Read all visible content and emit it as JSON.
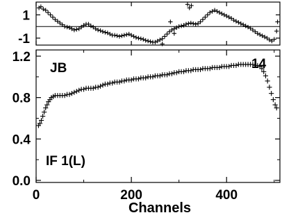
{
  "chart_data": [
    {
      "type": "scatter",
      "panel": "top",
      "ylim": [
        -1.6,
        2.1
      ],
      "xlim": [
        0,
        512
      ],
      "yticks": [
        "1",
        "-1"
      ],
      "ytick_values": [
        1,
        -1
      ],
      "reference_line_y": 0,
      "series": [
        {
          "marker": "+",
          "points": [
            [
              6,
              1.6
            ],
            [
              10,
              1.7
            ],
            [
              15,
              1.5
            ],
            [
              20,
              1.4
            ],
            [
              25,
              1.2
            ],
            [
              30,
              1.0
            ],
            [
              35,
              0.8
            ],
            [
              40,
              0.6
            ],
            [
              45,
              0.45
            ],
            [
              50,
              0.3
            ],
            [
              55,
              0.15
            ],
            [
              60,
              0.0
            ],
            [
              65,
              -0.05
            ],
            [
              70,
              -0.1
            ],
            [
              75,
              -0.2
            ],
            [
              80,
              -0.3
            ],
            [
              85,
              -0.25
            ],
            [
              90,
              -0.2
            ],
            [
              95,
              -0.05
            ],
            [
              100,
              0.1
            ],
            [
              105,
              0.2
            ],
            [
              110,
              0.2
            ],
            [
              115,
              0.05
            ],
            [
              120,
              -0.05
            ],
            [
              125,
              -0.2
            ],
            [
              130,
              -0.3
            ],
            [
              135,
              -0.35
            ],
            [
              140,
              -0.45
            ],
            [
              145,
              -0.5
            ],
            [
              150,
              -0.55
            ],
            [
              155,
              -0.65
            ],
            [
              160,
              -0.75
            ],
            [
              165,
              -0.75
            ],
            [
              170,
              -0.8
            ],
            [
              175,
              -0.85
            ],
            [
              180,
              -0.8
            ],
            [
              185,
              -0.75
            ],
            [
              190,
              -0.7
            ],
            [
              195,
              -0.65
            ],
            [
              200,
              -0.75
            ],
            [
              205,
              -0.85
            ],
            [
              210,
              -0.95
            ],
            [
              215,
              -1.0
            ],
            [
              220,
              -1.05
            ],
            [
              225,
              -1.1
            ],
            [
              230,
              -1.2
            ],
            [
              235,
              -1.25
            ],
            [
              240,
              -1.3
            ],
            [
              245,
              -1.35
            ],
            [
              250,
              -1.35
            ],
            [
              255,
              -1.25
            ],
            [
              260,
              -1.15
            ],
            [
              265,
              -1.05
            ],
            [
              270,
              -0.85
            ],
            [
              275,
              -0.65
            ],
            [
              280,
              -0.45
            ],
            [
              285,
              -0.3
            ],
            [
              290,
              -0.2
            ],
            [
              295,
              -0.1
            ],
            [
              300,
              0.0
            ],
            [
              305,
              0.05
            ],
            [
              310,
              0.1
            ],
            [
              315,
              0.2
            ],
            [
              320,
              0.25
            ],
            [
              325,
              0.3
            ],
            [
              330,
              0.25
            ],
            [
              335,
              0.2
            ],
            [
              340,
              0.25
            ],
            [
              345,
              0.4
            ],
            [
              350,
              0.6
            ],
            [
              355,
              0.8
            ],
            [
              360,
              1.0
            ],
            [
              365,
              1.2
            ],
            [
              370,
              1.3
            ],
            [
              375,
              1.4
            ],
            [
              380,
              1.3
            ],
            [
              385,
              1.2
            ],
            [
              390,
              1.1
            ],
            [
              395,
              1.0
            ],
            [
              400,
              0.9
            ],
            [
              405,
              0.8
            ],
            [
              410,
              0.7
            ],
            [
              415,
              0.55
            ],
            [
              420,
              0.45
            ],
            [
              425,
              0.35
            ],
            [
              430,
              0.25
            ],
            [
              435,
              0.15
            ],
            [
              440,
              0.05
            ],
            [
              445,
              -0.05
            ],
            [
              450,
              -0.15
            ],
            [
              455,
              -0.3
            ],
            [
              460,
              -0.45
            ],
            [
              465,
              -0.6
            ],
            [
              470,
              -0.7
            ],
            [
              475,
              -0.8
            ],
            [
              480,
              -0.9
            ],
            [
              485,
              -1.0
            ],
            [
              490,
              -1.15
            ],
            [
              495,
              -1.25
            ],
            [
              500,
              -1.1
            ],
            [
              505,
              -0.4
            ],
            [
              507,
              0.4
            ],
            [
              318,
              1.9
            ],
            [
              322,
              1.6
            ],
            [
              326,
              1.8
            ],
            [
              282,
              0.4
            ],
            [
              290,
              -0.6
            ],
            [
              265,
              -1.5
            ]
          ]
        }
      ]
    },
    {
      "type": "scatter",
      "panel": "bottom",
      "xlim": [
        0,
        512
      ],
      "ylim": [
        -0.02,
        1.26
      ],
      "xticks": [
        0,
        200,
        400
      ],
      "xtick_labels": [
        "0",
        "200",
        "400"
      ],
      "yticks": [
        0.0,
        0.4,
        0.8,
        1.2
      ],
      "ytick_labels": [
        "0.0",
        "0.4",
        "0.8",
        "1.2"
      ],
      "xlabel": "Channels",
      "annotations": [
        "JB",
        "14",
        "IF 1(L)"
      ],
      "series": [
        {
          "marker": "+",
          "points": [
            [
              5,
              0.53
            ],
            [
              8,
              0.55
            ],
            [
              11,
              0.58
            ],
            [
              14,
              0.62
            ],
            [
              17,
              0.66
            ],
            [
              20,
              0.7
            ],
            [
              23,
              0.73
            ],
            [
              26,
              0.76
            ],
            [
              29,
              0.78
            ],
            [
              32,
              0.8
            ],
            [
              36,
              0.81
            ],
            [
              40,
              0.82
            ],
            [
              45,
              0.82
            ],
            [
              50,
              0.82
            ],
            [
              55,
              0.82
            ],
            [
              60,
              0.82
            ],
            [
              65,
              0.83
            ],
            [
              70,
              0.83
            ],
            [
              75,
              0.84
            ],
            [
              80,
              0.85
            ],
            [
              85,
              0.86
            ],
            [
              90,
              0.87
            ],
            [
              95,
              0.88
            ],
            [
              100,
              0.88
            ],
            [
              105,
              0.89
            ],
            [
              110,
              0.89
            ],
            [
              115,
              0.89
            ],
            [
              120,
              0.89
            ],
            [
              125,
              0.9
            ],
            [
              130,
              0.9
            ],
            [
              135,
              0.91
            ],
            [
              140,
              0.92
            ],
            [
              145,
              0.93
            ],
            [
              150,
              0.93
            ],
            [
              155,
              0.94
            ],
            [
              160,
              0.94
            ],
            [
              165,
              0.95
            ],
            [
              170,
              0.95
            ],
            [
              175,
              0.95
            ],
            [
              180,
              0.96
            ],
            [
              185,
              0.96
            ],
            [
              190,
              0.97
            ],
            [
              195,
              0.97
            ],
            [
              200,
              0.97
            ],
            [
              205,
              0.98
            ],
            [
              210,
              0.98
            ],
            [
              215,
              0.98
            ],
            [
              220,
              0.99
            ],
            [
              225,
              0.99
            ],
            [
              230,
              0.99
            ],
            [
              235,
              1.0
            ],
            [
              240,
              1.0
            ],
            [
              245,
              1.0
            ],
            [
              250,
              1.01
            ],
            [
              255,
              1.01
            ],
            [
              260,
              1.01
            ],
            [
              265,
              1.02
            ],
            [
              270,
              1.02
            ],
            [
              275,
              1.02
            ],
            [
              280,
              1.03
            ],
            [
              285,
              1.03
            ],
            [
              290,
              1.04
            ],
            [
              295,
              1.04
            ],
            [
              300,
              1.05
            ],
            [
              305,
              1.05
            ],
            [
              310,
              1.05
            ],
            [
              315,
              1.06
            ],
            [
              320,
              1.06
            ],
            [
              325,
              1.06
            ],
            [
              330,
              1.07
            ],
            [
              335,
              1.07
            ],
            [
              340,
              1.07
            ],
            [
              345,
              1.07
            ],
            [
              350,
              1.08
            ],
            [
              355,
              1.08
            ],
            [
              360,
              1.08
            ],
            [
              365,
              1.08
            ],
            [
              370,
              1.09
            ],
            [
              375,
              1.09
            ],
            [
              380,
              1.09
            ],
            [
              385,
              1.09
            ],
            [
              390,
              1.1
            ],
            [
              395,
              1.1
            ],
            [
              400,
              1.1
            ],
            [
              405,
              1.1
            ],
            [
              410,
              1.11
            ],
            [
              415,
              1.11
            ],
            [
              420,
              1.11
            ],
            [
              425,
              1.12
            ],
            [
              430,
              1.12
            ],
            [
              435,
              1.12
            ],
            [
              440,
              1.12
            ],
            [
              445,
              1.12
            ],
            [
              450,
              1.12
            ],
            [
              455,
              1.12
            ],
            [
              460,
              1.11
            ],
            [
              465,
              1.11
            ],
            [
              470,
              1.1
            ],
            [
              474,
              1.08
            ],
            [
              478,
              1.05
            ],
            [
              482,
              1.01
            ],
            [
              486,
              0.96
            ],
            [
              490,
              0.9
            ],
            [
              494,
              0.84
            ],
            [
              498,
              0.78
            ],
            [
              502,
              0.73
            ],
            [
              505,
              0.7
            ]
          ]
        }
      ]
    }
  ]
}
